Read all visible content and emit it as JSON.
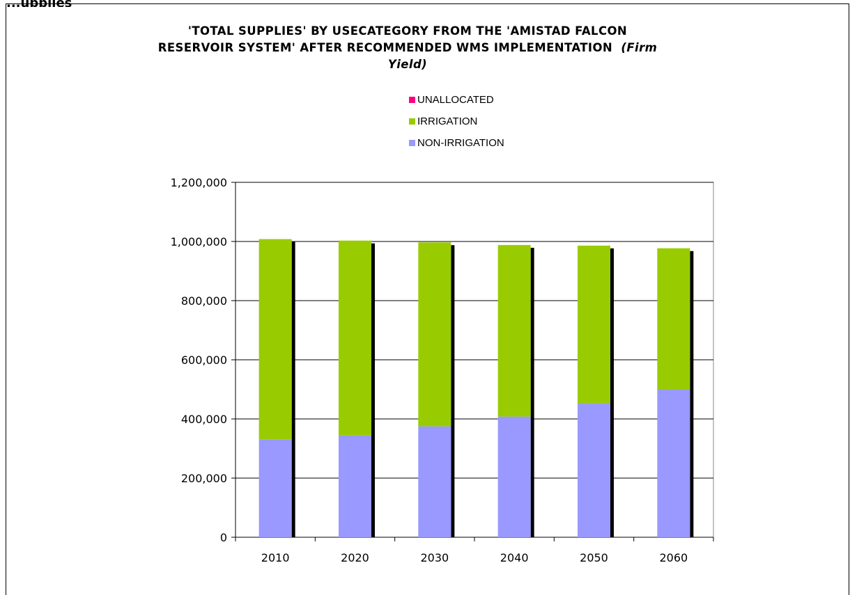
{
  "header_fragment": "...upplies",
  "chart_data": {
    "type": "bar",
    "stacked": true,
    "title_line1": "'TOTAL SUPPLIES' BY USECATEGORY FROM THE 'AMISTAD FALCON",
    "title_line2": "RESERVOIR SYSTEM' AFTER RECOMMENDED WMS IMPLEMENTATION",
    "title_suffix": "(Firm Yield)",
    "categories": [
      "2010",
      "2020",
      "2030",
      "2040",
      "2050",
      "2060"
    ],
    "series": [
      {
        "name": "NON-IRRIGATION",
        "color": "#9999ff",
        "values": [
          330000,
          345000,
          375000,
          408000,
          454000,
          500000
        ]
      },
      {
        "name": "IRRIGATION",
        "color": "#99cc00",
        "values": [
          678000,
          658000,
          622000,
          580000,
          532000,
          477000
        ]
      },
      {
        "name": "UNALLOCATED",
        "color": "#ff0080",
        "values": [
          0,
          0,
          0,
          0,
          0,
          0
        ]
      }
    ],
    "legend_order": [
      "UNALLOCATED",
      "IRRIGATION",
      "NON-IRRIGATION"
    ],
    "ylim": [
      0,
      1200000
    ],
    "yticks": [
      0,
      200000,
      400000,
      600000,
      800000,
      1000000,
      1200000
    ],
    "ytick_labels": [
      "0",
      "200,000",
      "400,000",
      "600,000",
      "800,000",
      "1,000,000",
      "1,200,000"
    ],
    "grid": true,
    "legend_position": "top-center",
    "xlabel": "",
    "ylabel": ""
  }
}
